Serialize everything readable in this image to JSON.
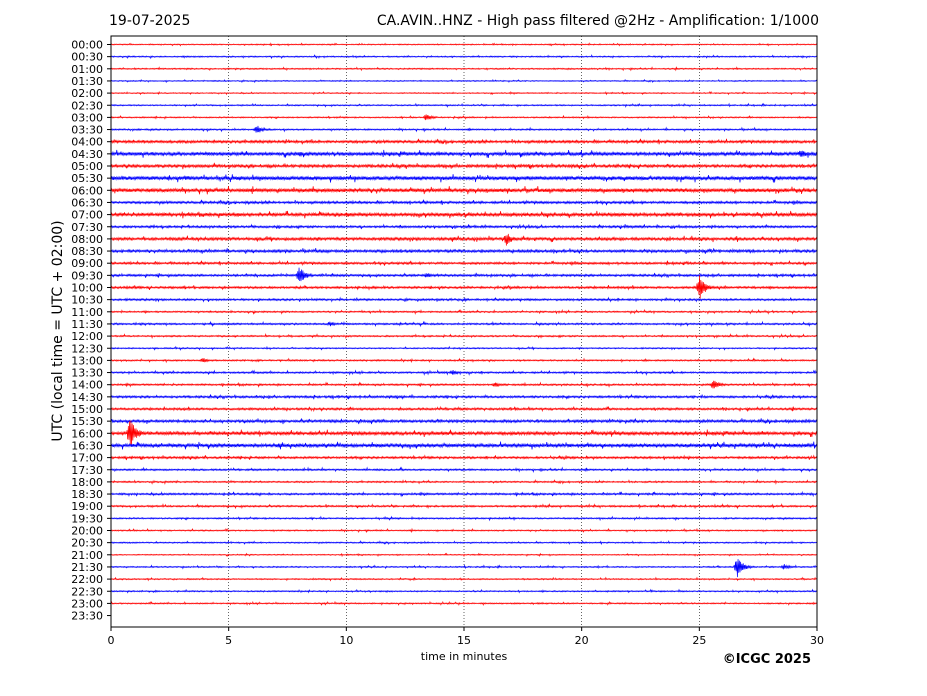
{
  "header": {
    "date": "19-07-2025",
    "title": "CA.AVIN..HNZ - High pass filtered @2Hz - Amplification: 1/1000"
  },
  "footer": {
    "copyright": "©ICGC 2025"
  },
  "chart_data": {
    "type": "line",
    "xlabel": "time in minutes",
    "ylabel": "UTC (local time = UTC + 02:00)",
    "xlim": [
      0,
      30
    ],
    "x_ticks": [
      "0",
      "5",
      "10",
      "15",
      "20",
      "25",
      "30"
    ],
    "grid": "vertical dotted lines at 5-minute intervals",
    "rows": [
      "00:00",
      "00:30",
      "01:00",
      "01:30",
      "02:00",
      "02:30",
      "03:00",
      "03:30",
      "04:00",
      "04:30",
      "05:00",
      "05:30",
      "06:00",
      "06:30",
      "07:00",
      "07:30",
      "08:00",
      "08:30",
      "09:00",
      "09:30",
      "10:00",
      "10:30",
      "11:00",
      "11:30",
      "12:00",
      "12:30",
      "13:00",
      "13:30",
      "14:00",
      "14:30",
      "15:00",
      "15:30",
      "16:00",
      "16:30",
      "17:00",
      "17:30",
      "18:00",
      "18:30",
      "19:00",
      "19:30",
      "20:00",
      "20:30",
      "21:00",
      "21:30",
      "22:00",
      "22:30",
      "23:00",
      "23:30"
    ],
    "row_colors": [
      "#ff0000",
      "#0000ff"
    ],
    "rows_with_trace": 47,
    "noise_levels": [
      0.5,
      0.6,
      0.6,
      0.5,
      0.5,
      0.6,
      0.6,
      0.7,
      1.2,
      1.6,
      1.3,
      1.8,
      1.7,
      1.1,
      1.5,
      1.0,
      1.3,
      1.2,
      1.0,
      1.0,
      1.0,
      0.9,
      0.7,
      0.8,
      0.7,
      0.6,
      0.7,
      0.8,
      0.8,
      1.0,
      1.0,
      1.2,
      1.5,
      1.6,
      1.0,
      0.8,
      0.7,
      0.9,
      0.8,
      0.7,
      0.6,
      0.6,
      0.5,
      0.6,
      0.6,
      0.6,
      0.6,
      0.0
    ],
    "events": [
      {
        "time": "03:00",
        "minute": 13.4,
        "amplitude": 4
      },
      {
        "time": "03:30",
        "minute": 6.2,
        "amplitude": 5
      },
      {
        "time": "04:30",
        "minute": 8.0,
        "amplitude": 3
      },
      {
        "time": "04:30",
        "minute": 29.3,
        "amplitude": 5
      },
      {
        "time": "05:30",
        "minute": 3.2,
        "amplitude": 3
      },
      {
        "time": "07:00",
        "minute": 10.0,
        "amplitude": 3
      },
      {
        "time": "08:00",
        "minute": 14.5,
        "amplitude": 3
      },
      {
        "time": "08:00",
        "minute": 16.8,
        "amplitude": 7
      },
      {
        "time": "09:30",
        "minute": 8.0,
        "amplitude": 10
      },
      {
        "time": "09:30",
        "minute": 13.4,
        "amplitude": 3
      },
      {
        "time": "10:00",
        "minute": 25.0,
        "amplitude": 13
      },
      {
        "time": "11:30",
        "minute": 9.3,
        "amplitude": 3
      },
      {
        "time": "13:00",
        "minute": 3.9,
        "amplitude": 3
      },
      {
        "time": "13:30",
        "minute": 14.5,
        "amplitude": 3
      },
      {
        "time": "14:00",
        "minute": 16.3,
        "amplitude": 3
      },
      {
        "time": "14:00",
        "minute": 25.6,
        "amplitude": 6
      },
      {
        "time": "16:00",
        "minute": 0.8,
        "amplitude": 17
      },
      {
        "time": "16:30",
        "minute": 7.1,
        "amplitude": 3
      },
      {
        "time": "21:30",
        "minute": 26.6,
        "amplitude": 11
      },
      {
        "time": "21:30",
        "minute": 28.6,
        "amplitude": 3
      }
    ]
  }
}
